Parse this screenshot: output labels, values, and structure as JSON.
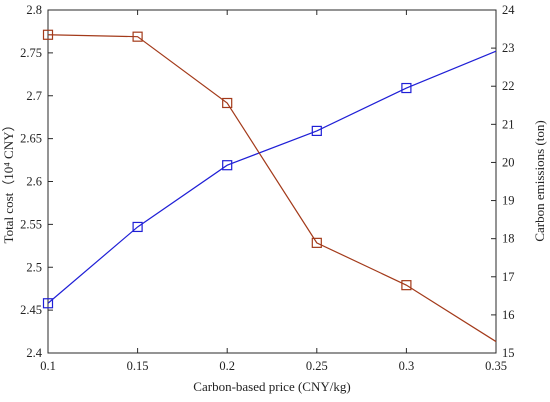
{
  "chart_data": {
    "type": "line",
    "xlabel": "Carbon-based price (CNY/kg)",
    "ylabel_left": "Total cost（10⁴ CNY）",
    "ylabel_right": "Carbon emissions (ton)",
    "xlim": [
      0.1,
      0.35
    ],
    "ylim_left": [
      2.4,
      2.8
    ],
    "ylim_right": [
      15,
      24
    ],
    "x_ticks": [
      "0.1",
      "0.15",
      "0.2",
      "0.25",
      "0.3",
      "0.35"
    ],
    "y_left_ticks": [
      "2.4",
      "2.45",
      "2.5",
      "2.55",
      "2.6",
      "2.65",
      "2.7",
      "2.75",
      "2.8"
    ],
    "y_right_ticks": [
      "15",
      "16",
      "17",
      "18",
      "19",
      "20",
      "21",
      "22",
      "23",
      "24"
    ],
    "grid": false,
    "series": [
      {
        "axis": "left",
        "color": "#1f1fd6",
        "marker": "square",
        "x": [
          0.1,
          0.15,
          0.2,
          0.25,
          0.3,
          0.35
        ],
        "values": [
          2.458,
          2.547,
          2.619,
          2.659,
          2.709,
          2.752
        ]
      },
      {
        "axis": "right",
        "color": "#a33a1a",
        "marker": "square",
        "x": [
          0.1,
          0.15,
          0.2,
          0.25,
          0.3,
          0.35
        ],
        "values": [
          23.35,
          23.3,
          21.56,
          17.89,
          16.78,
          15.3
        ]
      }
    ],
    "marker_count": 5
  }
}
